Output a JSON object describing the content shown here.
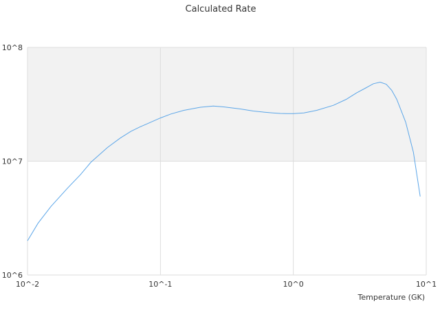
{
  "chart_data": {
    "type": "line",
    "title": "Calculated Rate",
    "xlabel": "Temperature (GK)",
    "ylabel": "",
    "x_scale": "log",
    "y_scale": "log",
    "xlim": [
      0.01,
      10
    ],
    "ylim": [
      1000000,
      100000000
    ],
    "x_ticks": [
      "10^-2",
      "10^-1",
      "10^0",
      "10^1"
    ],
    "y_ticks": [
      "10^6",
      "10^7",
      "10^8"
    ],
    "band": {
      "from": 10000000,
      "to": 100000000,
      "color": "#f2f2f2"
    },
    "grid": true,
    "legend": "none",
    "line_color": "#5aa5e8",
    "series": [
      {
        "x": [
          0.01,
          0.012,
          0.015,
          0.02,
          0.025,
          0.03,
          0.04,
          0.05,
          0.06,
          0.07,
          0.08,
          0.1,
          0.12,
          0.15,
          0.2,
          0.25,
          0.3,
          0.4,
          0.5,
          0.6,
          0.7,
          0.8,
          0.9,
          1.0,
          1.2,
          1.5,
          2.0,
          2.5,
          3.0,
          3.5,
          4.0,
          4.5,
          5.0,
          5.5,
          6.0,
          7.0,
          8.0,
          9.0
        ],
        "y": [
          2000000,
          2850000,
          4000000,
          5800000,
          7600000,
          9800000,
          13200000,
          16000000,
          18300000,
          20000000,
          21400000,
          24000000,
          26000000,
          28000000,
          29800000,
          30500000,
          30000000,
          28800000,
          27600000,
          27000000,
          26600000,
          26300000,
          26200000,
          26200000,
          26600000,
          28000000,
          31000000,
          35000000,
          40000000,
          44000000,
          48000000,
          49500000,
          47500000,
          42000000,
          35000000,
          22000000,
          12000000,
          4900000
        ]
      }
    ]
  }
}
